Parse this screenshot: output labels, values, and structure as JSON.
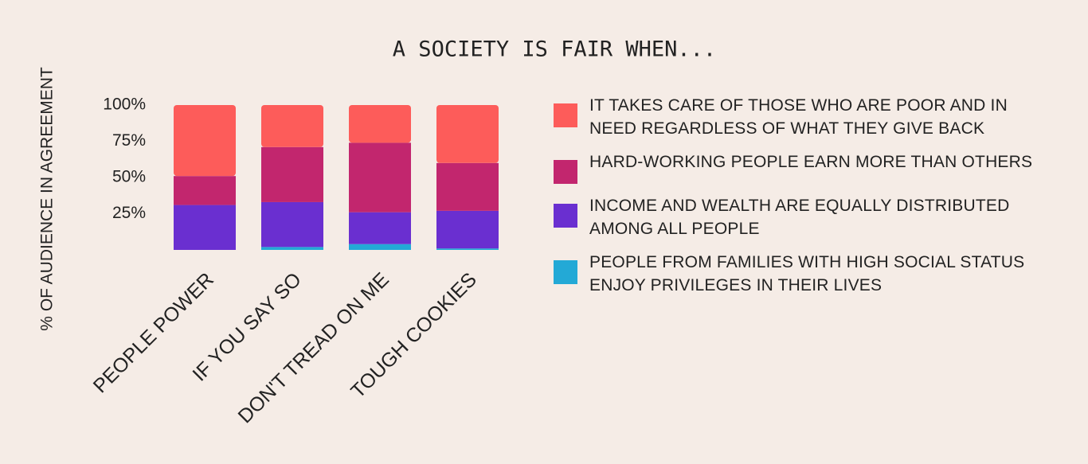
{
  "chart_data": {
    "type": "stacked_bar",
    "title": "A SOCIETY IS FAIR WHEN...",
    "y_label": "% OF AUDIENCE IN AGREEMENT",
    "categories": [
      "PEOPLE POWER",
      "IF YOU SAY SO",
      "DON'T TREAD ON ME",
      "TOUGH COOKIES"
    ],
    "series": [
      {
        "name": "IT TAKES CARE OF THOSE WHO ARE POOR AND IN NEED REGARDLESS OF WHAT THEY GIVE BACK",
        "color": "#fd5c5a",
        "values": [
          49,
          29,
          26,
          40
        ]
      },
      {
        "name": "HARD-WORKING PEOPLE EARN MORE THAN OTHERS",
        "color": "#c2266e",
        "values": [
          20,
          38,
          48,
          33
        ]
      },
      {
        "name": "INCOME AND WEALTH ARE EQUALLY DISTRIBUTED AMONG ALL PEOPLE",
        "color": "#6a2fd0",
        "values": [
          31,
          31,
          22,
          26
        ]
      },
      {
        "name": "PEOPLE FROM FAMILIES WITH HIGH SOCIAL STATUS ENJOY PRIVILEGES IN THEIR LIVES",
        "color": "#23a9d6",
        "values": [
          0,
          2,
          4,
          1
        ]
      }
    ],
    "ylim": [
      0,
      100
    ],
    "yticks": [
      {
        "value": 25,
        "label": "25%"
      },
      {
        "value": 50,
        "label": "50%"
      },
      {
        "value": 75,
        "label": "75%"
      },
      {
        "value": 100,
        "label": "100%"
      }
    ],
    "legend": "right"
  }
}
